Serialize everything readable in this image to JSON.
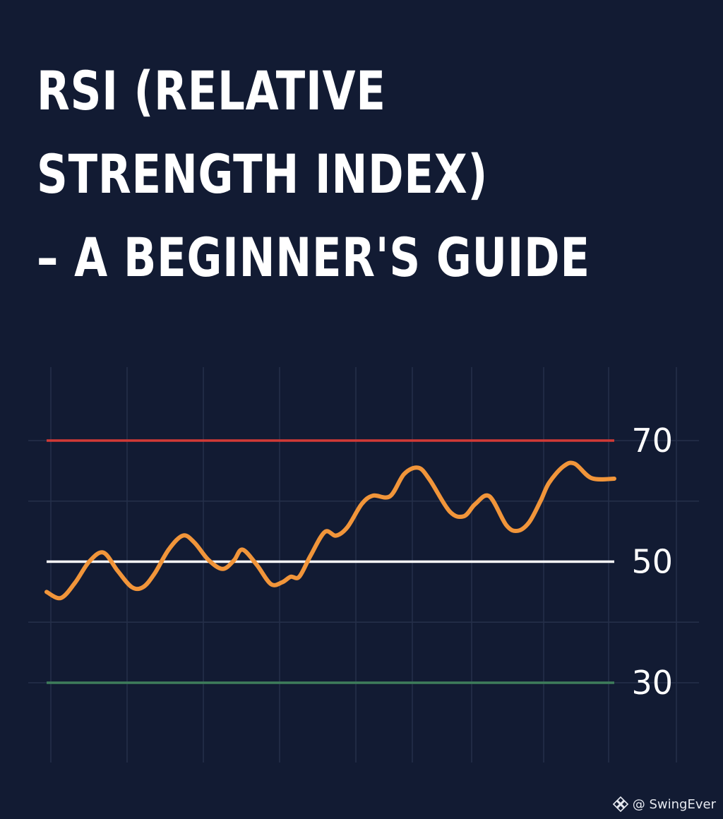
{
  "title": {
    "line1": "RSI (RELATIVE",
    "line2": "STRENGTH INDEX)",
    "line3": "– A BEGINNER'S GUIDE"
  },
  "watermark": {
    "text": "@ SwingEver",
    "icon": "brand-logo-icon"
  },
  "colors": {
    "background": "#121b33",
    "grid": "#25304a",
    "overbought": "#d23a36",
    "midline": "#ffffff",
    "oversold": "#3e7d5b",
    "rsi_line": "#f1953a",
    "text": "#ffffff"
  },
  "chart_data": {
    "type": "line",
    "title": "",
    "xlabel": "",
    "ylabel": "",
    "ylim": [
      27,
      80
    ],
    "xlim": [
      0,
      100
    ],
    "grid": true,
    "reference_lines": [
      {
        "value": 70,
        "label": "70",
        "color": "#d23a36"
      },
      {
        "value": 50,
        "label": "50",
        "color": "#ffffff"
      },
      {
        "value": 30,
        "label": "30",
        "color": "#3e7d5b"
      }
    ],
    "series": [
      {
        "color": "#f1953a",
        "x": [
          0,
          2.5,
          5,
          7.5,
          10,
          12.5,
          15,
          17,
          19,
          21.5,
          24,
          26,
          28.5,
          31,
          33,
          34.5,
          37,
          39.5,
          41.5,
          43,
          44.5,
          46.5,
          49,
          51,
          53,
          55.5,
          57.5,
          60.5,
          63,
          65.5,
          67.5,
          71,
          73.5,
          75.5,
          78,
          81,
          83,
          85,
          87,
          88.5,
          91,
          93,
          96,
          100
        ],
        "y": [
          45,
          44,
          46.5,
          50,
          51.5,
          48.5,
          45.8,
          45.8,
          48,
          52,
          54.3,
          53.2,
          50.3,
          48.8,
          50.2,
          52,
          49.5,
          46.3,
          46.6,
          47.5,
          47.5,
          51,
          54.9,
          54.3,
          55.7,
          59.5,
          60.9,
          60.8,
          64.5,
          65.5,
          63.5,
          58.3,
          57.5,
          59.5,
          60.8,
          56,
          55.1,
          56.5,
          60,
          63,
          65.7,
          66.2,
          63.8,
          63.7
        ]
      }
    ]
  }
}
